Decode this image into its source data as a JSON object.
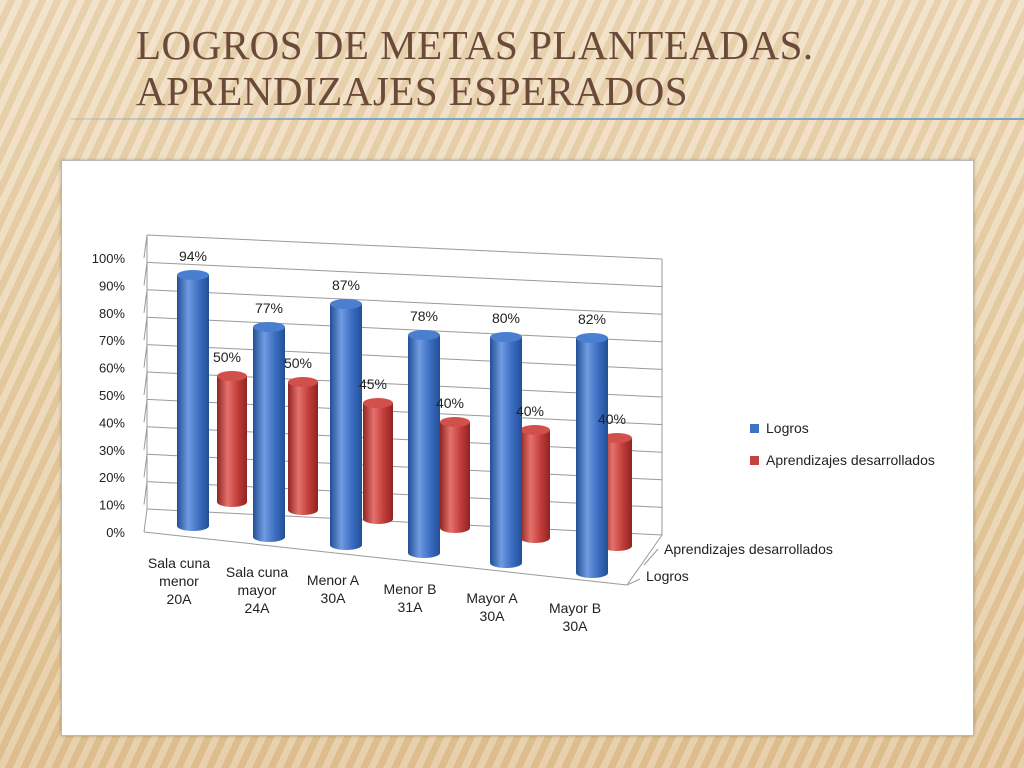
{
  "slide": {
    "title_line1": "LOGROS DE METAS PLANTEADAS.",
    "title_line2": "APRENDIZAJES ESPERADOS"
  },
  "chart_data": {
    "type": "bar",
    "style": "3d-cylinder",
    "categories": [
      [
        "Sala cuna",
        "menor",
        "20A"
      ],
      [
        "Sala cuna",
        "mayor",
        "24A"
      ],
      [
        "Menor A",
        "30A"
      ],
      [
        "Menor B",
        "31A"
      ],
      [
        "Mayor A",
        "30A"
      ],
      [
        "Mayor B",
        "30A"
      ]
    ],
    "series": [
      {
        "name": "Logros",
        "values": [
          94,
          77,
          87,
          78,
          80,
          82
        ],
        "labels": [
          "94%",
          "77%",
          "87%",
          "78%",
          "80%",
          "82%"
        ],
        "color": "#3f73c6"
      },
      {
        "name": "Aprendizajes desarrollados",
        "values": [
          50,
          50,
          45,
          40,
          40,
          40
        ],
        "labels": [
          "50%",
          "50%",
          "45%",
          "40%",
          "40%",
          "40%"
        ],
        "color": "#c8413e"
      }
    ],
    "y_ticks": [
      "0%",
      "10%",
      "20%",
      "30%",
      "40%",
      "50%",
      "60%",
      "70%",
      "80%",
      "90%",
      "100%"
    ],
    "depth_labels": [
      "Aprendizajes desarrollados",
      "Logros"
    ],
    "ylim": [
      0,
      100
    ],
    "grid": true,
    "legend": "right"
  }
}
